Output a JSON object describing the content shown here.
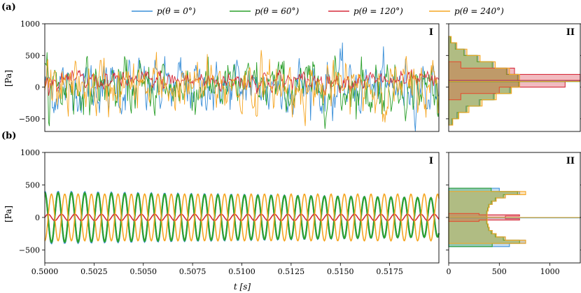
{
  "chart_data": [
    {
      "panel": "(a)",
      "type": "line",
      "roman": "I",
      "ylabel": "[Pa]",
      "xlim": [
        0.5,
        0.52
      ],
      "ylim": [
        -700,
        1000
      ],
      "yticks": [
        -500,
        0,
        500,
        1000
      ],
      "shows_x_tick_labels": false,
      "signal": "turbulent",
      "series": [
        {
          "name": "p(θ = 0°)",
          "color": "#3a8fd8",
          "std": 270,
          "mean": 0
        },
        {
          "name": "p(θ = 60°)",
          "color": "#2ca02c",
          "std": 270,
          "mean": 0
        },
        {
          "name": "p(θ = 120°)",
          "color": "#d62c3c",
          "std": 95,
          "mean": 100
        },
        {
          "name": "p(θ = 240°)",
          "color": "#f5a623",
          "std": 270,
          "mean": 0
        }
      ]
    },
    {
      "panel": "(a)",
      "type": "histogram",
      "roman": "II",
      "orientation": "horizontal",
      "xlim": [
        0,
        1300
      ],
      "ylim": [
        -700,
        1000
      ],
      "shows_x_tick_labels": false,
      "series": [
        {
          "name": "p(θ = 0°)",
          "color": "#3a8fd8",
          "bins": [
            -600,
            -500,
            -400,
            -300,
            -200,
            -100,
            0,
            100,
            200,
            300,
            400,
            500,
            600,
            700,
            800
          ],
          "counts": [
            30,
            80,
            170,
            300,
            440,
            600,
            700,
            690,
            580,
            440,
            290,
            160,
            70,
            20
          ]
        },
        {
          "name": "p(θ = 60°)",
          "color": "#2ca02c",
          "bins": [
            -600,
            -500,
            -400,
            -300,
            -200,
            -100,
            0,
            100,
            200,
            300,
            400,
            500,
            600,
            700,
            800
          ],
          "counts": [
            35,
            90,
            180,
            310,
            450,
            610,
            690,
            680,
            570,
            430,
            280,
            150,
            65,
            18
          ]
        },
        {
          "name": "p(θ = 120°)",
          "color": "#d62c3c",
          "bins": [
            -200,
            -100,
            0,
            100,
            200,
            300,
            400
          ],
          "counts": [
            120,
            500,
            1150,
            1300,
            650,
            120
          ]
        },
        {
          "name": "p(θ = 240°)",
          "color": "#f5a623",
          "bins": [
            -600,
            -500,
            -400,
            -300,
            -200,
            -100,
            0,
            100,
            200,
            300,
            400,
            500,
            600,
            700,
            800
          ],
          "counts": [
            40,
            100,
            200,
            330,
            470,
            620,
            700,
            700,
            600,
            460,
            310,
            180,
            80,
            25
          ]
        }
      ]
    },
    {
      "panel": "(b)",
      "type": "line",
      "roman": "I",
      "ylabel": "[Pa]",
      "xlabel": "t [s]",
      "xlim": [
        0.5,
        0.52
      ],
      "ylim": [
        -700,
        1000
      ],
      "yticks": [
        -500,
        0,
        500,
        1000
      ],
      "xticks": [
        0.5,
        0.5025,
        0.505,
        0.5075,
        0.51,
        0.5125,
        0.515,
        0.5175
      ],
      "xticklabels": [
        "0.5000",
        "0.5025",
        "0.5050",
        "0.5075",
        "0.5100",
        "0.5125",
        "0.5150",
        "0.5175"
      ],
      "shows_x_tick_labels": true,
      "signal": "sinusoidal",
      "frequency_hz": 1480,
      "series": [
        {
          "name": "p(θ = 0°)",
          "color": "#3a8fd8",
          "amplitude": 400,
          "phase_deg": 90,
          "decay": 0.25
        },
        {
          "name": "p(θ = 60°)",
          "color": "#2ca02c",
          "amplitude": 385,
          "phase_deg": 90,
          "decay": 0.22
        },
        {
          "name": "p(θ = 120°)",
          "color": "#d62c3c",
          "amplitude": 50,
          "phase_deg": 0,
          "decay": 0.0
        },
        {
          "name": "p(θ = 240°)",
          "color": "#f5a623",
          "amplitude": 360,
          "phase_deg": 270,
          "decay": 0.0
        }
      ]
    },
    {
      "panel": "(b)",
      "type": "histogram",
      "roman": "II",
      "orientation": "horizontal",
      "xlim": [
        0,
        1300
      ],
      "ylim": [
        -700,
        1000
      ],
      "xticks": [
        0,
        500,
        1000
      ],
      "xticklabels": [
        "0",
        "500",
        "1000"
      ],
      "shows_x_tick_labels": true,
      "series": [
        {
          "name": "p(θ = 0°)",
          "color": "#3a8fd8",
          "bins": [
            -450,
            -400,
            -350,
            -300,
            -250,
            -200,
            -150,
            -100,
            -50,
            0,
            50,
            100,
            150,
            200,
            250,
            300,
            350,
            400,
            450
          ],
          "counts": [
            600,
            760,
            560,
            470,
            430,
            400,
            390,
            380,
            380,
            380,
            380,
            390,
            400,
            430,
            470,
            560,
            700,
            500
          ]
        },
        {
          "name": "p(θ = 60°)",
          "color": "#2ca02c",
          "bins": [
            -450,
            -400,
            -350,
            -300,
            -250,
            -200,
            -150,
            -100,
            -50,
            0,
            50,
            100,
            150,
            200,
            250,
            300,
            350,
            400,
            450
          ],
          "counts": [
            430,
            700,
            540,
            460,
            420,
            395,
            385,
            375,
            375,
            375,
            375,
            385,
            395,
            420,
            460,
            540,
            680,
            420
          ]
        },
        {
          "name": "p(θ = 120°)",
          "color": "#d62c3c",
          "bins": [
            -60,
            -40,
            -20,
            0,
            20,
            40,
            60
          ],
          "counts": [
            300,
            700,
            560,
            560,
            700,
            300
          ]
        },
        {
          "name": "p(θ = 240°)",
          "color": "#f5a623",
          "bins": [
            -400,
            -350,
            -300,
            -250,
            -200,
            -150,
            -100,
            -50,
            0,
            50,
            100,
            150,
            200,
            250,
            300,
            350,
            400
          ],
          "counts": [
            760,
            560,
            470,
            430,
            400,
            390,
            380,
            380,
            380,
            380,
            390,
            400,
            430,
            470,
            560,
            760
          ]
        }
      ]
    }
  ],
  "legend": [
    {
      "label": "p(θ = 0°)",
      "color": "#3a8fd8"
    },
    {
      "label": "p(θ = 60°)",
      "color": "#2ca02c"
    },
    {
      "label": "p(θ = 120°)",
      "color": "#d62c3c"
    },
    {
      "label": "p(θ = 240°)",
      "color": "#f5a623"
    }
  ],
  "panel_labels": {
    "a": "(a)",
    "b": "(b)"
  },
  "roman_labels": {
    "i": "I",
    "ii": "II"
  },
  "axis_labels": {
    "y": "[Pa]",
    "x": "t [s]"
  }
}
